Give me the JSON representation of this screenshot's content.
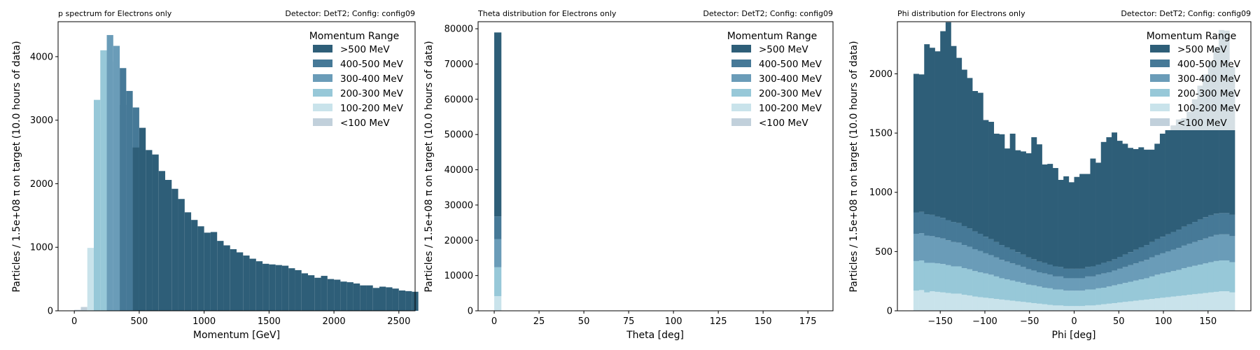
{
  "colors": {
    ">500 MeV": "#2e5e78",
    "400-500 MeV": "#467997",
    "300-400 MeV": "#6a9cb8",
    "200-300 MeV": "#97c8d8",
    "100-200 MeV": "#c9e3eb",
    "<100 MeV": "#c1d0db"
  },
  "chart_data": [
    {
      "type": "bar",
      "stacked": true,
      "title": "p spectrum for Electrons only",
      "subtitle": "Detector: DetT2; Config: config09",
      "xlabel": "Momentum [GeV]",
      "ylabel": "Particles / 1.5e+08 π on target (10.0 hours of data)",
      "xlim": [
        -125,
        2625
      ],
      "ylim": [
        0,
        4550
      ],
      "xticks": [
        0,
        500,
        1000,
        1500,
        2000,
        2500
      ],
      "yticks": [
        0,
        1000,
        2000,
        3000,
        4000
      ],
      "bin_width": 50,
      "legend_title": "Momentum Range",
      "legend_placement": "top-right",
      "legend_labels": [
        ">500 MeV",
        "400-500 MeV",
        "300-400 MeV",
        "200-300 MeV",
        "100-200 MeV",
        "<100 MeV"
      ],
      "series": [
        {
          "name": "<100 MeV",
          "segments": [
            [
              0,
              50,
              15
            ],
            [
              50,
              100,
              60
            ]
          ]
        },
        {
          "name": "100-200 MeV",
          "segments": [
            [
              100,
              150,
              990
            ],
            [
              150,
              200,
              3000
            ]
          ]
        },
        {
          "name": "200-300 MeV",
          "segments": [
            [
              150,
              200,
              3320
            ],
            [
              200,
              250,
              4100
            ],
            [
              250,
              300,
              3920
            ]
          ]
        },
        {
          "name": "300-400 MeV",
          "segments": [
            [
              250,
              300,
              4340
            ],
            [
              300,
              350,
              4170
            ],
            [
              350,
              400,
              3240
            ]
          ]
        },
        {
          "name": "400-500 MeV",
          "segments": [
            [
              350,
              400,
              3820
            ],
            [
              400,
              450,
              3460
            ],
            [
              450,
              500,
              3200
            ]
          ]
        },
        {
          "name": ">500 MeV",
          "x_start": 450,
          "values": [
            2570,
            2880,
            2530,
            2460,
            2200,
            2060,
            1920,
            1760,
            1550,
            1430,
            1330,
            1230,
            1240,
            1100,
            1030,
            970,
            920,
            870,
            820,
            780,
            740,
            730,
            720,
            710,
            670,
            640,
            590,
            560,
            520,
            550,
            500,
            490,
            460,
            450,
            430,
            400,
            400,
            360,
            380,
            370,
            350,
            320,
            310,
            300
          ]
        }
      ]
    },
    {
      "type": "bar",
      "stacked": true,
      "title": "Theta distribution for Electrons only",
      "subtitle": "Detector: DetT2; Config: config09",
      "xlabel": "Theta [deg]",
      "ylabel": "Particles / 1.5e+08 π on target (10.0 hours of data)",
      "xlim": [
        -9,
        189
      ],
      "ylim": [
        0,
        82000
      ],
      "xticks": [
        0,
        25,
        50,
        75,
        100,
        125,
        150,
        175
      ],
      "yticks": [
        0,
        10000,
        20000,
        30000,
        40000,
        50000,
        60000,
        70000,
        80000
      ],
      "bin_range": [
        0,
        4
      ],
      "legend_title": "Momentum Range",
      "legend_placement": "top-right",
      "legend_labels": [
        ">500 MeV",
        "400-500 MeV",
        "300-400 MeV",
        "200-300 MeV",
        "100-200 MeV",
        "<100 MeV"
      ],
      "series": [
        {
          "name": "<100 MeV",
          "value": 150
        },
        {
          "name": "100-200 MeV",
          "value": 4000
        },
        {
          "name": "200-300 MeV",
          "value": 8200
        },
        {
          "name": "300-400 MeV",
          "value": 8000
        },
        {
          "name": "400-500 MeV",
          "value": 6400
        },
        {
          "name": ">500 MeV",
          "value": 52200
        }
      ]
    },
    {
      "type": "area",
      "stacked": true,
      "title": "Phi distribution for Electrons only",
      "subtitle": "Detector: DetT2; Config: config09",
      "xlabel": "Phi [deg]",
      "ylabel": "Particles / 1.5e+08 π on target (10.0 hours of data)",
      "xlim": [
        -198,
        198
      ],
      "ylim": [
        0,
        2440
      ],
      "xticks": [
        -150,
        -100,
        -50,
        0,
        50,
        100,
        150
      ],
      "yticks": [
        0,
        500,
        1000,
        1500,
        2000
      ],
      "bin_range": [
        -180,
        180
      ],
      "bins": 60,
      "legend_title": "Momentum Range",
      "legend_placement": "top-right",
      "legend_labels": [
        ">500 MeV",
        "400-500 MeV",
        "300-400 MeV",
        "200-300 MeV",
        "100-200 MeV",
        "<100 MeV"
      ],
      "series": [
        {
          "name": "<100 MeV",
          "values": [
            5,
            5,
            5,
            5,
            5,
            5,
            5,
            5,
            5,
            5,
            5,
            5,
            5,
            5,
            5,
            5,
            5,
            5,
            5,
            5,
            5,
            5,
            5,
            5,
            5,
            5,
            5,
            5,
            5,
            5,
            5,
            5,
            5,
            5,
            5,
            5,
            5,
            5,
            5,
            5,
            5,
            5,
            5,
            5,
            5,
            5,
            5,
            5,
            5,
            5,
            5,
            5,
            5,
            5,
            5,
            5,
            5,
            5,
            5,
            5
          ]
        },
        {
          "name": "100-200 MeV",
          "values": [
            165,
            170,
            150,
            160,
            155,
            150,
            145,
            140,
            140,
            130,
            125,
            115,
            110,
            105,
            100,
            95,
            90,
            85,
            80,
            75,
            70,
            65,
            60,
            55,
            50,
            45,
            40,
            40,
            35,
            35,
            35,
            35,
            40,
            40,
            45,
            50,
            55,
            60,
            65,
            70,
            75,
            80,
            85,
            90,
            95,
            100,
            105,
            110,
            115,
            120,
            125,
            130,
            135,
            140,
            145,
            150,
            155,
            160,
            160,
            150
          ]
        },
        {
          "name": "200-300 MeV",
          "values": [
            250,
            250,
            250,
            240,
            240,
            240,
            235,
            230,
            230,
            225,
            220,
            215,
            210,
            205,
            200,
            190,
            180,
            175,
            170,
            165,
            160,
            150,
            150,
            145,
            140,
            140,
            135,
            135,
            130,
            130,
            130,
            130,
            135,
            135,
            140,
            140,
            145,
            150,
            155,
            160,
            165,
            170,
            175,
            180,
            190,
            200,
            205,
            210,
            215,
            220,
            230,
            235,
            240,
            245,
            250,
            255,
            260,
            260,
            260,
            255
          ]
        },
        {
          "name": "300-400 MeV",
          "values": [
            230,
            230,
            230,
            225,
            220,
            215,
            210,
            205,
            200,
            195,
            190,
            185,
            180,
            170,
            165,
            160,
            155,
            150,
            145,
            140,
            135,
            130,
            125,
            120,
            120,
            115,
            110,
            110,
            105,
            105,
            105,
            105,
            110,
            110,
            115,
            120,
            120,
            125,
            130,
            135,
            140,
            145,
            150,
            155,
            160,
            165,
            170,
            175,
            180,
            185,
            190,
            195,
            200,
            205,
            210,
            215,
            220,
            220,
            220,
            220
          ]
        },
        {
          "name": "400-500 MeV",
          "values": [
            180,
            180,
            180,
            180,
            175,
            175,
            170,
            170,
            165,
            160,
            155,
            150,
            145,
            140,
            135,
            130,
            125,
            120,
            115,
            110,
            105,
            100,
            95,
            90,
            90,
            85,
            85,
            80,
            80,
            80,
            80,
            80,
            80,
            85,
            85,
            90,
            90,
            95,
            100,
            105,
            110,
            115,
            120,
            125,
            130,
            135,
            140,
            145,
            150,
            155,
            160,
            165,
            170,
            175,
            180,
            180,
            180,
            180,
            180,
            180
          ]
        },
        {
          "name": ">500 MeV",
          "values": [
            1170,
            1160,
            1435,
            1410,
            1395,
            1575,
            1670,
            1485,
            1395,
            1320,
            1270,
            1185,
            1190,
            985,
            990,
            915,
            935,
            835,
            980,
            860,
            870,
            880,
            1030,
            990,
            830,
            850,
            830,
            735,
            780,
            730,
            775,
            800,
            785,
            910,
            860,
            1020,
            1050,
            1070,
            980,
            935,
            880,
            850,
            845,
            805,
            780,
            805,
            870,
            880,
            900,
            930,
            915,
            950,
            1035,
            1130,
            1205,
            1300,
            1405,
            1545,
            1540,
            1245
          ]
        }
      ]
    }
  ]
}
